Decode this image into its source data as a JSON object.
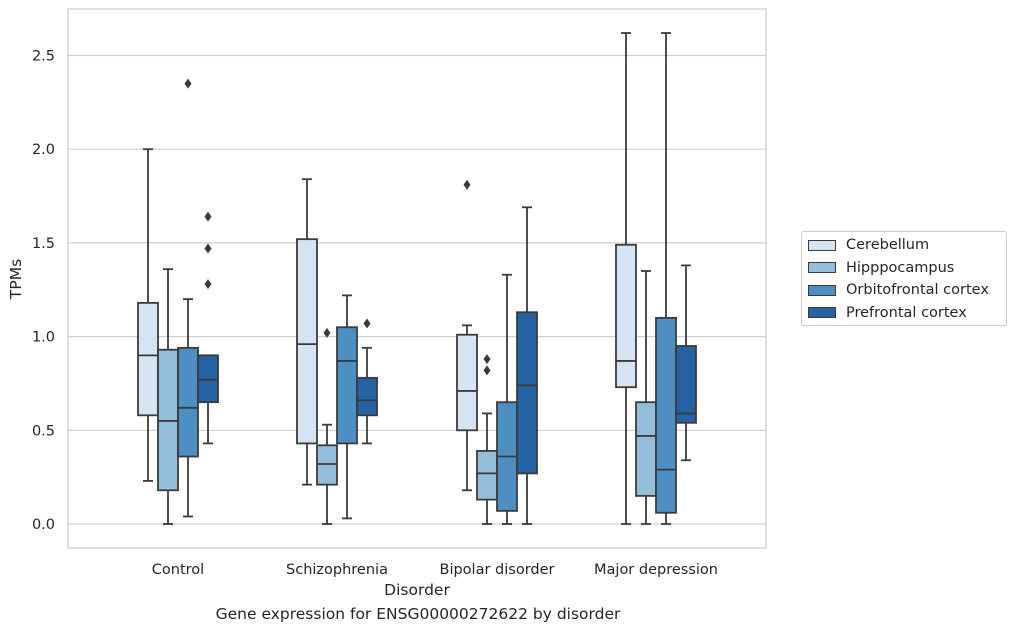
{
  "chart_data": {
    "type": "box",
    "title": "",
    "caption": "Gene expression for ENSG00000272622 by disorder",
    "xlabel": "Disorder",
    "ylabel": "TPMs",
    "ylim": [
      -0.12,
      2.76
    ],
    "yticks": [
      "0.0",
      "0.5",
      "1.0",
      "1.5",
      "2.0",
      "2.5"
    ],
    "grid": "horizontal",
    "legend_position": "right",
    "categories": [
      "Control",
      "Schizophrenia",
      "Bipolar disorder",
      "Major depression"
    ],
    "series": [
      {
        "name": "Cerebellum",
        "color": "#d4e4f3",
        "boxes": [
          {
            "min": 0.23,
            "q1": 0.58,
            "median": 0.9,
            "q3": 1.18,
            "max": 2.0,
            "outliers": []
          },
          {
            "min": 0.21,
            "q1": 0.43,
            "median": 0.96,
            "q3": 1.52,
            "max": 1.84,
            "outliers": []
          },
          {
            "min": 0.18,
            "q1": 0.5,
            "median": 0.71,
            "q3": 1.01,
            "max": 1.06,
            "outliers": [
              1.81
            ]
          },
          {
            "min": 0.0,
            "q1": 0.73,
            "median": 0.87,
            "q3": 1.49,
            "max": 2.62,
            "outliers": []
          }
        ]
      },
      {
        "name": "Hipppocampus",
        "color": "#93bdd9",
        "boxes": [
          {
            "min": 0.0,
            "q1": 0.18,
            "median": 0.55,
            "q3": 0.93,
            "max": 1.36,
            "outliers": []
          },
          {
            "min": 0.0,
            "q1": 0.21,
            "median": 0.32,
            "q3": 0.42,
            "max": 0.53,
            "outliers": [
              1.02
            ]
          },
          {
            "min": 0.0,
            "q1": 0.13,
            "median": 0.27,
            "q3": 0.39,
            "max": 0.59,
            "outliers": [
              0.82,
              0.88
            ]
          },
          {
            "min": 0.0,
            "q1": 0.15,
            "median": 0.47,
            "q3": 0.65,
            "max": 1.35,
            "outliers": []
          }
        ]
      },
      {
        "name": "Orbitofrontal cortex",
        "color": "#4c8fc0",
        "boxes": [
          {
            "min": 0.04,
            "q1": 0.36,
            "median": 0.62,
            "q3": 0.94,
            "max": 1.2,
            "outliers": [
              2.35
            ]
          },
          {
            "min": 0.03,
            "q1": 0.43,
            "median": 0.87,
            "q3": 1.05,
            "max": 1.22,
            "outliers": []
          },
          {
            "min": 0.0,
            "q1": 0.07,
            "median": 0.36,
            "q3": 0.65,
            "max": 1.33,
            "outliers": []
          },
          {
            "min": 0.0,
            "q1": 0.06,
            "median": 0.29,
            "q3": 1.1,
            "max": 2.62,
            "outliers": []
          }
        ]
      },
      {
        "name": "Prefrontal cortex",
        "color": "#2462a3",
        "boxes": [
          {
            "min": 0.43,
            "q1": 0.65,
            "median": 0.77,
            "q3": 0.9,
            "max": 0.9,
            "outliers": [
              1.28,
              1.47,
              1.64
            ]
          },
          {
            "min": 0.43,
            "q1": 0.58,
            "median": 0.66,
            "q3": 0.78,
            "max": 0.94,
            "outliers": [
              1.07
            ]
          },
          {
            "min": 0.0,
            "q1": 0.27,
            "median": 0.74,
            "q3": 1.13,
            "max": 1.69,
            "outliers": []
          },
          {
            "min": 0.34,
            "q1": 0.54,
            "median": 0.59,
            "q3": 0.95,
            "max": 1.38,
            "outliers": []
          }
        ]
      }
    ]
  }
}
